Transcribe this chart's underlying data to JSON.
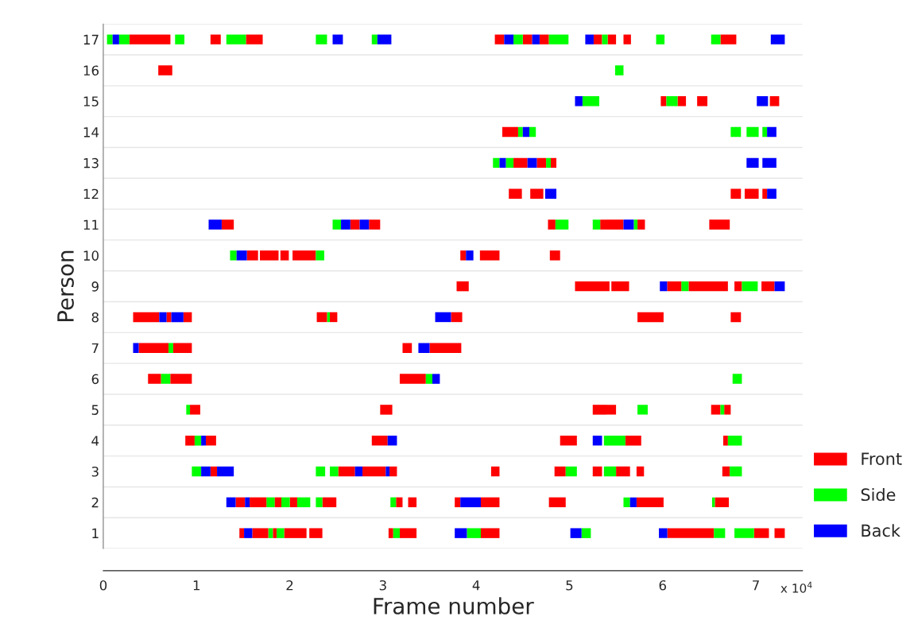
{
  "chart_data": {
    "type": "bar",
    "orientation": "horizontal",
    "xlabel": "Frame number",
    "ylabel": "Person",
    "categories": [
      "17",
      "16",
      "15",
      "14",
      "13",
      "12",
      "11",
      "10",
      "9",
      "8",
      "7",
      "6",
      "5",
      "4",
      "3",
      "2",
      "1"
    ],
    "xlim": [
      0,
      7.5
    ],
    "xticks": [
      0,
      1,
      2,
      3,
      4,
      5,
      6,
      7
    ],
    "legend": "right",
    "grid": false,
    "annotations": [
      "x 10$^{4}$"
    ],
    "series": [
      {
        "name": "Front",
        "color": "#ff0000",
        "base": [
          0.28,
          0.59,
          5.98,
          4.28,
          4.4,
          4.35,
          1.27,
          1.54,
          3.79,
          0.32,
          0.38,
          0.48,
          0.93,
          0.88,
          1.15,
          1.42,
          1.46
        ],
        "values": [
          0.44,
          0.15,
          0.06,
          0.17,
          0.15,
          0.14,
          0.13,
          0.12,
          0.13,
          0.28,
          0.32,
          0.14,
          0.11,
          0.1,
          0.07,
          0.1,
          0.05
        ]
      },
      {
        "name": "Side",
        "color": "#00ff00",
        "base": [
          0.04,
          5.49,
          5.14,
          4.45,
          4.18,
          null,
          2.46,
          1.36,
          6.2,
          2.4,
          0.7,
          0.62,
          0.89,
          0.98,
          0.95,
          1.75,
          1.77
        ],
        "values": [
          0.06,
          0.09,
          0.18,
          0.05,
          0.07,
          null,
          0.09,
          0.07,
          0.08,
          0.03,
          0.05,
          0.1,
          0.04,
          0.07,
          0.1,
          0.09,
          0.05
        ]
      },
      {
        "name": "Back",
        "color": "#0000ff",
        "base": [
          0.1,
          null,
          5.06,
          4.5,
          4.25,
          4.74,
          1.13,
          1.43,
          5.97,
          0.6,
          0.32,
          3.53,
          null,
          1.05,
          1.05,
          1.32,
          1.51
        ],
        "values": [
          0.07,
          null,
          0.08,
          0.07,
          0.07,
          0.12,
          0.14,
          0.11,
          0.08,
          0.08,
          0.06,
          0.08,
          null,
          0.05,
          0.1,
          0.1,
          0.09
        ]
      },
      {
        "color": "#ff0000",
        "base": [
          1.15,
          null,
          6.16,
          null,
          4.65,
          4.58,
          2.65,
          1.68,
          5.06,
          0.68,
          0.75,
          0.72,
          2.97,
          1.1,
          2.52,
          1.57,
          1.6
        ],
        "values": [
          0.11,
          null,
          0.09,
          null,
          0.1,
          0.14,
          0.1,
          0.2,
          0.37,
          0.05,
          0.2,
          0.23,
          0.13,
          0.11,
          0.18,
          0.18,
          0.17
        ]
      },
      {
        "color": "#ff0000",
        "base": [
          1.53,
          null,
          6.37,
          null,
          4.8,
          6.73,
          2.85,
          1.9,
          5.45,
          0.86,
          3.21,
          3.18,
          5.25,
          2.88,
          2.78,
          1.84,
          1.82
        ],
        "values": [
          0.18,
          null,
          0.11,
          null,
          0.06,
          0.11,
          0.12,
          0.09,
          0.19,
          0.09,
          0.1,
          0.28,
          0.25,
          0.17,
          0.25,
          0.07,
          0.04
        ]
      },
      {
        "color": "#ff0000",
        "base": [
          4.2,
          null,
          7.15,
          null,
          null,
          6.88,
          4.77,
          2.03,
          6.05,
          2.29,
          3.5,
          null,
          6.52,
          4.9,
          3.07,
          2.0,
          1.94
        ],
        "values": [
          0.1,
          null,
          0.1,
          null,
          null,
          0.15,
          0.08,
          0.25,
          0.15,
          0.11,
          0.34,
          null,
          0.1,
          0.18,
          0.08,
          0.08,
          0.24
        ]
      },
      {
        "color": "#ff0000",
        "base": [
          4.5,
          null,
          null,
          null,
          null,
          7.07,
          5.33,
          3.83,
          6.28,
          2.43,
          null,
          null,
          6.66,
          5.6,
          4.16,
          2.35,
          2.21
        ],
        "values": [
          0.1,
          null,
          null,
          null,
          null,
          0.05,
          0.25,
          0.06,
          0.42,
          0.08,
          null,
          null,
          0.07,
          0.17,
          0.09,
          0.15,
          0.14
        ]
      },
      {
        "color": "#ff0000",
        "base": [
          4.68,
          null,
          null,
          null,
          null,
          null,
          5.73,
          4.04,
          6.77,
          3.73,
          null,
          null,
          null,
          6.65,
          4.84,
          3.14,
          3.06
        ],
        "values": [
          0.1,
          null,
          null,
          null,
          null,
          null,
          0.08,
          0.21,
          0.08,
          0.12,
          null,
          null,
          null,
          0.05,
          0.12,
          0.07,
          0.05
        ]
      },
      {
        "color": "#ff0000",
        "base": [
          5.26,
          null,
          null,
          null,
          null,
          null,
          6.5,
          4.79,
          7.06,
          5.73,
          null,
          null,
          null,
          null,
          5.25,
          3.27,
          3.18
        ],
        "values": [
          0.09,
          null,
          null,
          null,
          null,
          null,
          0.22,
          0.11,
          0.14,
          0.28,
          null,
          null,
          null,
          null,
          0.1,
          0.09,
          0.18
        ]
      },
      {
        "color": "#ff0000",
        "base": [
          5.41,
          null,
          null,
          null,
          null,
          null,
          null,
          null,
          null,
          6.73,
          null,
          null,
          null,
          null,
          5.5,
          3.77,
          4.05
        ],
        "values": [
          0.09,
          null,
          null,
          null,
          null,
          null,
          null,
          null,
          null,
          0.11,
          null,
          null,
          null,
          null,
          0.15,
          0.06,
          0.2
        ]
      },
      {
        "color": "#ff0000",
        "base": [
          5.58,
          null,
          null,
          null,
          null,
          null,
          null,
          null,
          null,
          null,
          null,
          null,
          null,
          null,
          5.72,
          4.05,
          6.05
        ],
        "values": [
          0.08,
          null,
          null,
          null,
          null,
          null,
          null,
          null,
          null,
          null,
          null,
          null,
          null,
          null,
          0.08,
          0.2,
          0.5
        ]
      },
      {
        "color": "#ff0000",
        "base": [
          6.62,
          null,
          null,
          null,
          null,
          null,
          null,
          null,
          null,
          null,
          null,
          null,
          null,
          null,
          6.64,
          4.78,
          6.98
        ],
        "values": [
          0.17,
          null,
          null,
          null,
          null,
          null,
          null,
          null,
          null,
          null,
          null,
          null,
          null,
          null,
          0.08,
          0.18,
          0.16
        ]
      },
      {
        "color": "#ff0000",
        "base": [
          null,
          null,
          null,
          null,
          null,
          null,
          null,
          null,
          null,
          null,
          null,
          null,
          null,
          null,
          null,
          5.72,
          7.2
        ],
        "values": [
          null,
          null,
          null,
          null,
          null,
          null,
          null,
          null,
          null,
          null,
          null,
          null,
          null,
          null,
          null,
          0.29,
          0.11
        ]
      },
      {
        "color": "#ff0000",
        "base": [
          null,
          null,
          null,
          null,
          null,
          null,
          null,
          null,
          null,
          null,
          null,
          null,
          null,
          null,
          null,
          6.56,
          null
        ],
        "values": [
          null,
          null,
          null,
          null,
          null,
          null,
          null,
          null,
          null,
          null,
          null,
          null,
          null,
          null,
          null,
          0.15,
          null
        ]
      },
      {
        "color": "#00ff00",
        "base": [
          0.17,
          null,
          6.04,
          4.57,
          4.32,
          null,
          4.85,
          2.28,
          6.85,
          null,
          null,
          3.46,
          5.73,
          5.37,
          2.28,
          1.91,
          1.86
        ],
        "values": [
          0.11,
          null,
          0.12,
          0.07,
          0.08,
          null,
          0.14,
          0.09,
          0.17,
          null,
          null,
          0.07,
          0.11,
          0.23,
          0.1,
          0.09,
          0.08
        ]
      },
      {
        "color": "#00ff00",
        "base": [
          0.77,
          null,
          null,
          6.73,
          4.75,
          null,
          5.25,
          null,
          null,
          null,
          null,
          6.75,
          6.62,
          6.7,
          2.43,
          2.08,
          3.11
        ],
        "values": [
          0.1,
          null,
          null,
          0.11,
          0.05,
          null,
          0.08,
          null,
          null,
          null,
          null,
          0.1,
          0.04,
          0.15,
          0.09,
          0.14,
          0.07
        ]
      },
      {
        "color": "#00ff00",
        "base": [
          1.32,
          null,
          null,
          6.9,
          null,
          null,
          5.69,
          null,
          null,
          null,
          null,
          null,
          null,
          null,
          4.96,
          2.28,
          3.9
        ],
        "values": [
          0.21,
          null,
          null,
          0.13,
          null,
          null,
          0.04,
          null,
          null,
          null,
          null,
          null,
          null,
          null,
          0.12,
          0.07,
          0.15
        ]
      },
      {
        "color": "#00ff00",
        "base": [
          2.28,
          null,
          null,
          7.07,
          null,
          null,
          null,
          null,
          null,
          null,
          null,
          null,
          null,
          null,
          5.37,
          3.08,
          5.13
        ],
        "values": [
          0.12,
          null,
          null,
          0.05,
          null,
          null,
          null,
          null,
          null,
          null,
          null,
          null,
          null,
          null,
          0.13,
          0.06,
          0.1
        ]
      },
      {
        "color": "#00ff00",
        "base": [
          2.88,
          null,
          null,
          null,
          null,
          null,
          null,
          null,
          null,
          null,
          null,
          null,
          null,
          null,
          6.72,
          5.58,
          6.55
        ],
        "values": [
          0.06,
          null,
          null,
          null,
          null,
          null,
          null,
          null,
          null,
          null,
          null,
          null,
          null,
          null,
          0.13,
          0.07,
          0.12
        ]
      },
      {
        "color": "#00ff00",
        "base": [
          4.4,
          null,
          null,
          null,
          null,
          null,
          null,
          null,
          null,
          null,
          null,
          null,
          null,
          null,
          null,
          6.53,
          6.77
        ],
        "values": [
          0.1,
          null,
          null,
          null,
          null,
          null,
          null,
          null,
          null,
          null,
          null,
          null,
          null,
          null,
          null,
          0.03,
          0.21
        ]
      },
      {
        "color": "#00ff00",
        "base": [
          4.78,
          null,
          null,
          null,
          null,
          null,
          null,
          null,
          null,
          null,
          null,
          null,
          null,
          null,
          null,
          null,
          null
        ],
        "values": [
          0.21,
          null,
          null,
          null,
          null,
          null,
          null,
          null,
          null,
          null,
          null,
          null,
          null,
          null,
          null,
          null,
          null
        ]
      },
      {
        "color": "#00ff00",
        "base": [
          5.35,
          null,
          null,
          null,
          null,
          null,
          null,
          null,
          null,
          null,
          null,
          null,
          null,
          null,
          null,
          null,
          null
        ],
        "values": [
          0.06,
          null,
          null,
          null,
          null,
          null,
          null,
          null,
          null,
          null,
          null,
          null,
          null,
          null,
          null,
          null,
          null
        ]
      },
      {
        "color": "#00ff00",
        "base": [
          5.93,
          null,
          null,
          null,
          null,
          null,
          null,
          null,
          null,
          null,
          null,
          null,
          null,
          null,
          null,
          null,
          null
        ],
        "values": [
          0.09,
          null,
          null,
          null,
          null,
          null,
          null,
          null,
          null,
          null,
          null,
          null,
          null,
          null,
          null,
          null,
          null
        ]
      },
      {
        "color": "#00ff00",
        "base": [
          6.52,
          null,
          null,
          null,
          null,
          null,
          null,
          null,
          null,
          null,
          null,
          null,
          null,
          null,
          null,
          null,
          null
        ],
        "values": [
          0.1,
          null,
          null,
          null,
          null,
          null,
          null,
          null,
          null,
          null,
          null,
          null,
          null,
          null,
          null,
          null,
          null
        ]
      },
      {
        "color": "#0000ff",
        "base": [
          2.46,
          null,
          7.01,
          7.12,
          4.55,
          7.12,
          2.55,
          3.89,
          7.2,
          0.73,
          3.38,
          null,
          null,
          3.05,
          1.22,
          1.52,
          3.77
        ],
        "values": [
          0.11,
          null,
          0.12,
          0.1,
          0.1,
          0.1,
          0.1,
          0.08,
          0.11,
          0.13,
          0.12,
          null,
          null,
          0.1,
          0.18,
          0.05,
          0.13
        ]
      },
      {
        "color": "#0000ff",
        "base": [
          2.94,
          null,
          null,
          null,
          6.9,
          null,
          2.75,
          null,
          null,
          3.56,
          null,
          null,
          null,
          5.25,
          2.7,
          3.83,
          5.01
        ],
        "values": [
          0.15,
          null,
          null,
          null,
          0.13,
          null,
          0.1,
          null,
          null,
          0.17,
          null,
          null,
          null,
          0.1,
          0.08,
          0.22,
          0.12
        ]
      },
      {
        "color": "#0000ff",
        "base": [
          4.3,
          null,
          null,
          null,
          7.07,
          null,
          5.58,
          null,
          null,
          null,
          null,
          null,
          null,
          null,
          3.03,
          5.65,
          5.96
        ],
        "values": [
          0.1,
          null,
          null,
          null,
          0.15,
          null,
          0.11,
          null,
          null,
          null,
          null,
          null,
          null,
          null,
          0.04,
          0.07,
          0.09
        ]
      },
      {
        "color": "#0000ff",
        "base": [
          4.6,
          null,
          null,
          null,
          null,
          null,
          null,
          null,
          null,
          null,
          null,
          null,
          null,
          null,
          null,
          null,
          null
        ],
        "values": [
          0.08,
          null,
          null,
          null,
          null,
          null,
          null,
          null,
          null,
          null,
          null,
          null,
          null,
          null,
          null,
          null,
          null
        ]
      },
      {
        "color": "#0000ff",
        "base": [
          5.17,
          null,
          null,
          null,
          null,
          null,
          null,
          null,
          null,
          null,
          null,
          null,
          null,
          null,
          null,
          null,
          null
        ],
        "values": [
          0.09,
          null,
          null,
          null,
          null,
          null,
          null,
          null,
          null,
          null,
          null,
          null,
          null,
          null,
          null,
          null,
          null
        ]
      },
      {
        "color": "#0000ff",
        "base": [
          7.16,
          null,
          null,
          null,
          null,
          null,
          null,
          null,
          null,
          null,
          null,
          null,
          null,
          null,
          null,
          null,
          null
        ],
        "values": [
          0.15,
          null,
          null,
          null,
          null,
          null,
          null,
          null,
          null,
          null,
          null,
          null,
          null,
          null,
          null,
          null,
          null
        ]
      }
    ]
  }
}
